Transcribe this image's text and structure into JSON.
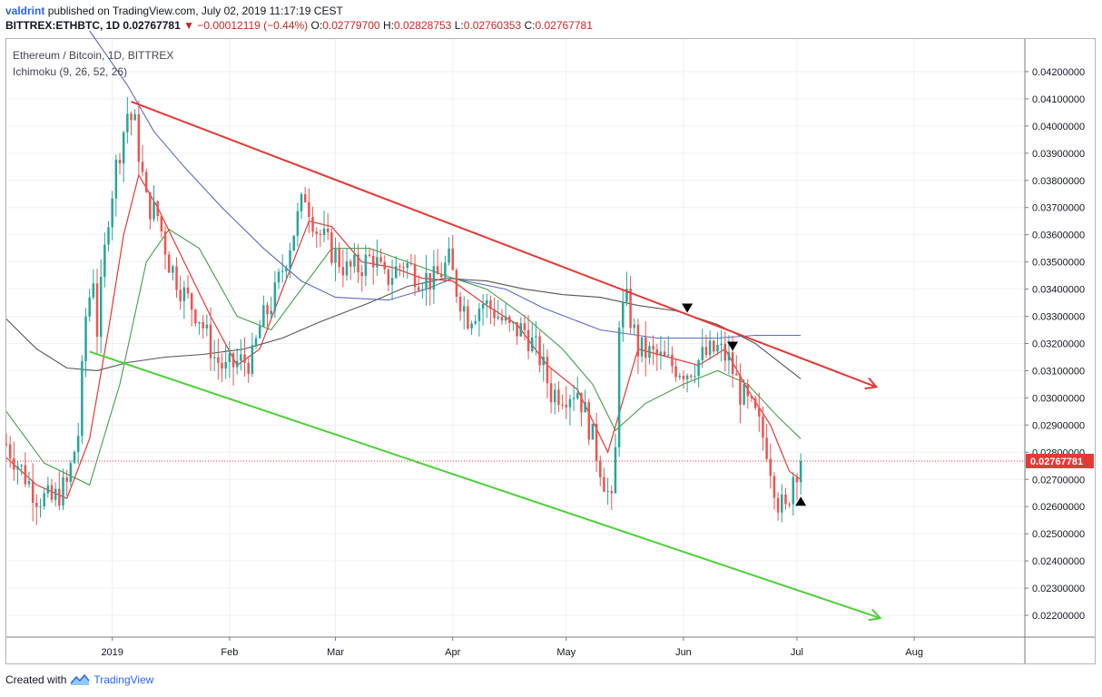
{
  "header": {
    "user": "valdrint",
    "published_text": "published on TradingView.com, July 02, 2019 11:17:19 CEST"
  },
  "symbol_bar": {
    "symbol": "BITTREX:ETHBTC, 1D",
    "last": "0.02767781",
    "change": "▼ −0.00012119 (−0.44%)",
    "o_label": "O:",
    "o": "0.02779700",
    "h_label": "H:",
    "h": "0.02828753",
    "l_label": "L:",
    "l": "0.02760353",
    "c_label": "C:",
    "c": "0.02767781"
  },
  "legend": {
    "title": "Ethereum / Bitcoin, 1D, BITTREX",
    "indicator": "Ichimoku (9, 26, 52, 26)"
  },
  "footer": {
    "created": "Created with",
    "brand": "TradingView",
    "logo_icon": "tradingview-logo-icon"
  },
  "colors": {
    "up": "#26a69a",
    "down": "#ef5350",
    "channel_upper": "#e53935",
    "channel_lower": "#4cd137",
    "conversion": "#e53935",
    "base": "#43a047",
    "span_b": "#5c6bc0",
    "lagging": "#555555",
    "price_line": "#e53935"
  },
  "chart_data": {
    "type": "candlestick",
    "title": "Ethereum / Bitcoin, 1D, BITTREX",
    "ylim": [
      0.0212,
      0.0432
    ],
    "y_ticks": [
      "0.04200000",
      "0.04100000",
      "0.04000000",
      "0.03900000",
      "0.03800000",
      "0.03700000",
      "0.03600000",
      "0.03500000",
      "0.03400000",
      "0.03300000",
      "0.03200000",
      "0.03100000",
      "0.03000000",
      "0.02900000",
      "0.02800000",
      "0.02700000",
      "0.02600000",
      "0.02500000",
      "0.02400000",
      "0.02300000",
      "0.02200000"
    ],
    "x_range": [
      "2018-12-04",
      "2019-08-30"
    ],
    "x_ticks": [
      {
        "date": "2019-01-01",
        "label": "2019"
      },
      {
        "date": "2019-02-01",
        "label": "Feb"
      },
      {
        "date": "2019-03-01",
        "label": "Mar"
      },
      {
        "date": "2019-04-01",
        "label": "Apr"
      },
      {
        "date": "2019-05-01",
        "label": "May"
      },
      {
        "date": "2019-06-01",
        "label": "Jun"
      },
      {
        "date": "2019-07-01",
        "label": "Jul"
      },
      {
        "date": "2019-08-01",
        "label": "Aug"
      }
    ],
    "last_price": 0.02767781,
    "last_price_label": "0.02767781",
    "price_anchors": [
      [
        "2018-12-04",
        0.0283
      ],
      [
        "2018-12-12",
        0.0264
      ],
      [
        "2018-12-16",
        0.0262
      ],
      [
        "2018-12-20",
        0.0268
      ],
      [
        "2018-12-23",
        0.0287
      ],
      [
        "2018-12-25",
        0.033
      ],
      [
        "2018-12-27",
        0.0345
      ],
      [
        "2018-12-28",
        0.0325
      ],
      [
        "2018-12-31",
        0.0368
      ],
      [
        "2019-01-02",
        0.0385
      ],
      [
        "2019-01-05",
        0.0405
      ],
      [
        "2019-01-07",
        0.04
      ],
      [
        "2019-01-10",
        0.0372
      ],
      [
        "2019-01-13",
        0.0367
      ],
      [
        "2019-01-16",
        0.035
      ],
      [
        "2019-01-20",
        0.0338
      ],
      [
        "2019-01-24",
        0.033
      ],
      [
        "2019-01-28",
        0.0315
      ],
      [
        "2019-01-31",
        0.031
      ],
      [
        "2019-02-03",
        0.0313
      ],
      [
        "2019-02-07",
        0.0314
      ],
      [
        "2019-02-09",
        0.0326
      ],
      [
        "2019-02-13",
        0.0338
      ],
      [
        "2019-02-17",
        0.0357
      ],
      [
        "2019-02-21",
        0.0375
      ],
      [
        "2019-02-24",
        0.0362
      ],
      [
        "2019-02-27",
        0.0356
      ],
      [
        "2019-03-04",
        0.0347
      ],
      [
        "2019-03-07",
        0.0348
      ],
      [
        "2019-03-11",
        0.0352
      ],
      [
        "2019-03-14",
        0.0343
      ],
      [
        "2019-03-19",
        0.035
      ],
      [
        "2019-03-23",
        0.0345
      ],
      [
        "2019-03-27",
        0.0343
      ],
      [
        "2019-03-31",
        0.035
      ],
      [
        "2019-04-02",
        0.034
      ],
      [
        "2019-04-05",
        0.033
      ],
      [
        "2019-04-09",
        0.0335
      ],
      [
        "2019-04-12",
        0.0332
      ],
      [
        "2019-04-16",
        0.0325
      ],
      [
        "2019-04-20",
        0.0325
      ],
      [
        "2019-04-24",
        0.0315
      ],
      [
        "2019-04-27",
        0.0302
      ],
      [
        "2019-05-01",
        0.0302
      ],
      [
        "2019-05-04",
        0.0303
      ],
      [
        "2019-05-07",
        0.029
      ],
      [
        "2019-05-10",
        0.0275
      ],
      [
        "2019-05-13",
        0.026
      ],
      [
        "2019-05-14",
        0.028
      ],
      [
        "2019-05-15",
        0.033
      ],
      [
        "2019-05-17",
        0.0335
      ],
      [
        "2019-05-20",
        0.0318
      ],
      [
        "2019-05-25",
        0.0315
      ],
      [
        "2019-05-29",
        0.0312
      ],
      [
        "2019-06-02",
        0.031
      ],
      [
        "2019-06-06",
        0.0315
      ],
      [
        "2019-06-10",
        0.0318
      ],
      [
        "2019-06-13",
        0.0314
      ],
      [
        "2019-06-16",
        0.0302
      ],
      [
        "2019-06-20",
        0.0293
      ],
      [
        "2019-06-23",
        0.0282
      ],
      [
        "2019-06-26",
        0.0262
      ],
      [
        "2019-06-28",
        0.0258
      ],
      [
        "2019-06-30",
        0.0272
      ],
      [
        "2019-07-02",
        0.02768
      ]
    ],
    "ichimoku": {
      "name": "Ichimoku (9, 26, 52, 26)",
      "conversion_line": [
        [
          "2018-12-04",
          0.0278
        ],
        [
          "2018-12-12",
          0.0268
        ],
        [
          "2018-12-20",
          0.0263
        ],
        [
          "2018-12-26",
          0.0285
        ],
        [
          "2018-12-31",
          0.0325
        ],
        [
          "2019-01-04",
          0.036
        ],
        [
          "2019-01-08",
          0.0382
        ],
        [
          "2019-01-13",
          0.037
        ],
        [
          "2019-01-20",
          0.035
        ],
        [
          "2019-01-27",
          0.033
        ],
        [
          "2019-02-03",
          0.0312
        ],
        [
          "2019-02-09",
          0.0318
        ],
        [
          "2019-02-15",
          0.034
        ],
        [
          "2019-02-22",
          0.0365
        ],
        [
          "2019-02-28",
          0.0363
        ],
        [
          "2019-03-08",
          0.035
        ],
        [
          "2019-03-16",
          0.0348
        ],
        [
          "2019-03-24",
          0.0344
        ],
        [
          "2019-04-01",
          0.0343
        ],
        [
          "2019-04-10",
          0.0334
        ],
        [
          "2019-04-18",
          0.0327
        ],
        [
          "2019-04-26",
          0.0312
        ],
        [
          "2019-05-04",
          0.0303
        ],
        [
          "2019-05-12",
          0.028
        ],
        [
          "2019-05-20",
          0.0318
        ],
        [
          "2019-05-28",
          0.0315
        ],
        [
          "2019-06-05",
          0.0312
        ],
        [
          "2019-06-12",
          0.0318
        ],
        [
          "2019-06-18",
          0.0303
        ],
        [
          "2019-06-24",
          0.029
        ],
        [
          "2019-06-29",
          0.0273
        ],
        [
          "2019-07-02",
          0.027
        ]
      ],
      "base_line": [
        [
          "2018-12-04",
          0.0295
        ],
        [
          "2018-12-14",
          0.0276
        ],
        [
          "2018-12-26",
          0.0268
        ],
        [
          "2019-01-03",
          0.0305
        ],
        [
          "2019-01-10",
          0.035
        ],
        [
          "2019-01-16",
          0.0362
        ],
        [
          "2019-01-24",
          0.0355
        ],
        [
          "2019-02-03",
          0.033
        ],
        [
          "2019-02-12",
          0.0325
        ],
        [
          "2019-02-20",
          0.034
        ],
        [
          "2019-02-28",
          0.0355
        ],
        [
          "2019-03-10",
          0.0355
        ],
        [
          "2019-03-20",
          0.035
        ],
        [
          "2019-03-30",
          0.0345
        ],
        [
          "2019-04-10",
          0.034
        ],
        [
          "2019-04-20",
          0.033
        ],
        [
          "2019-04-30",
          0.0318
        ],
        [
          "2019-05-08",
          0.0305
        ],
        [
          "2019-05-14",
          0.0288
        ],
        [
          "2019-05-22",
          0.0298
        ],
        [
          "2019-06-01",
          0.0305
        ],
        [
          "2019-06-10",
          0.031
        ],
        [
          "2019-06-18",
          0.0305
        ],
        [
          "2019-06-26",
          0.0293
        ],
        [
          "2019-07-02",
          0.0285
        ]
      ],
      "lagging_span": [
        [
          "2018-12-04",
          0.0329
        ],
        [
          "2018-12-12",
          0.0318
        ],
        [
          "2018-12-20",
          0.0311
        ],
        [
          "2018-12-28",
          0.031
        ],
        [
          "2019-01-05",
          0.0313
        ],
        [
          "2019-01-15",
          0.0315
        ],
        [
          "2019-01-25",
          0.0316
        ],
        [
          "2019-02-05",
          0.0318
        ],
        [
          "2019-02-15",
          0.0322
        ],
        [
          "2019-02-25",
          0.0328
        ],
        [
          "2019-03-10",
          0.0335
        ],
        [
          "2019-03-20",
          0.0341
        ],
        [
          "2019-03-30",
          0.0344
        ],
        [
          "2019-04-10",
          0.0343
        ],
        [
          "2019-04-20",
          0.034
        ],
        [
          "2019-04-30",
          0.0338
        ],
        [
          "2019-05-10",
          0.0337
        ],
        [
          "2019-05-20",
          0.0334
        ],
        [
          "2019-05-30",
          0.0332
        ],
        [
          "2019-06-10",
          0.0327
        ],
        [
          "2019-06-20",
          0.032
        ],
        [
          "2019-07-02",
          0.0307
        ]
      ],
      "leading_span_b": [
        [
          "2018-12-26",
          0.0435
        ],
        [
          "2019-01-05",
          0.0415
        ],
        [
          "2019-01-12",
          0.0398
        ],
        [
          "2019-01-20",
          0.0385
        ],
        [
          "2019-01-30",
          0.037
        ],
        [
          "2019-02-10",
          0.0355
        ],
        [
          "2019-02-20",
          0.0343
        ],
        [
          "2019-03-01",
          0.0337
        ],
        [
          "2019-03-15",
          0.0336
        ],
        [
          "2019-03-25",
          0.034
        ],
        [
          "2019-04-01",
          0.0344
        ],
        [
          "2019-04-15",
          0.034
        ],
        [
          "2019-04-25",
          0.0333
        ],
        [
          "2019-05-10",
          0.0325
        ],
        [
          "2019-05-25",
          0.0322
        ],
        [
          "2019-06-10",
          0.0322
        ],
        [
          "2019-06-20",
          0.0323
        ],
        [
          "2019-07-02",
          0.0323
        ]
      ]
    },
    "trend_lines": [
      {
        "name": "descending resistance",
        "color": "#e53935",
        "from": [
          "2019-01-06",
          0.0409
        ],
        "to": [
          "2019-07-22",
          0.0304
        ],
        "arrow": true
      },
      {
        "name": "descending support",
        "color": "#4cd137",
        "from": [
          "2018-12-26",
          0.0317
        ],
        "to": [
          "2019-07-23",
          0.0219
        ],
        "arrow": true
      }
    ],
    "markers": [
      {
        "shape": "down-triangle",
        "date": "2019-06-02",
        "value": 0.0333
      },
      {
        "shape": "down-triangle",
        "date": "2019-06-14",
        "value": 0.0319
      },
      {
        "shape": "up-triangle",
        "date": "2019-07-02",
        "value": 0.0262
      }
    ]
  }
}
